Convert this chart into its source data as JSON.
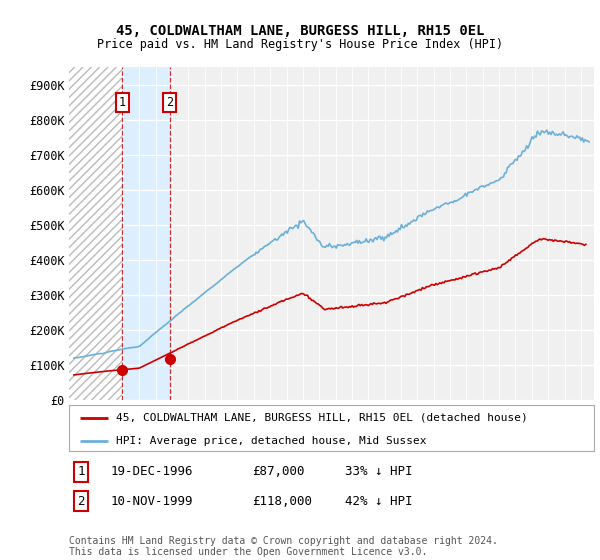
{
  "title": "45, COLDWALTHAM LANE, BURGESS HILL, RH15 0EL",
  "subtitle": "Price paid vs. HM Land Registry's House Price Index (HPI)",
  "ylim": [
    0,
    950000
  ],
  "yticks": [
    0,
    100000,
    200000,
    300000,
    400000,
    500000,
    600000,
    700000,
    800000,
    900000
  ],
  "ytick_labels": [
    "£0",
    "£100K",
    "£200K",
    "£300K",
    "£400K",
    "£500K",
    "£600K",
    "£700K",
    "£800K",
    "£900K"
  ],
  "hpi_color": "#6ab0d8",
  "price_color": "#cc0000",
  "shaded_color": "#ddeeff",
  "hatch_edgecolor": "#bbbbbb",
  "marker_color": "#cc0000",
  "vline_color": "#cc0000",
  "sale1_x": 1996.96,
  "sale1_y": 87000,
  "sale2_x": 1999.86,
  "sale2_y": 118000,
  "legend_line1": "45, COLDWALTHAM LANE, BURGESS HILL, RH15 0EL (detached house)",
  "legend_line2": "HPI: Average price, detached house, Mid Sussex",
  "table_row1": [
    "1",
    "19-DEC-1996",
    "£87,000",
    "33% ↓ HPI"
  ],
  "table_row2": [
    "2",
    "10-NOV-1999",
    "£118,000",
    "42% ↓ HPI"
  ],
  "footnote": "Contains HM Land Registry data © Crown copyright and database right 2024.\nThis data is licensed under the Open Government Licence v3.0.",
  "bg_color": "#ffffff",
  "plot_bg_color": "#f0f0f0",
  "xmin": 1993.7,
  "xmax": 2025.8
}
